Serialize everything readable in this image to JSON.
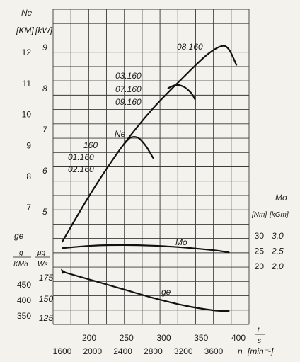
{
  "chart_data": {
    "type": "line",
    "title": "",
    "x_axis": {
      "label": "n",
      "unit": "[min⁻¹]",
      "ticks": [
        "1600",
        "2000",
        "2400",
        "2800",
        "3200",
        "3600"
      ],
      "range": [
        1400,
        4050
      ]
    },
    "x2_axis": {
      "label_top": "r",
      "label_bottom": "s",
      "ticks": [
        "200",
        "250",
        "300",
        "350",
        "400"
      ]
    },
    "power_axis": {
      "label": "Ne",
      "unit_km": "KM",
      "unit_kw": "kW",
      "ticks_km": [
        "7",
        "8",
        "9",
        "10",
        "11",
        "12"
      ],
      "ticks_kw": [
        "5",
        "6",
        "7",
        "8",
        "9"
      ]
    },
    "ge_axis": {
      "label": "ge",
      "unit_left_top": "g",
      "unit_left_bottom": "KMh",
      "unit_right_top": "μg",
      "unit_right_bottom": "Ws",
      "ticks_g_kmh": [
        "350",
        "400",
        "450"
      ],
      "ticks_ug_ws": [
        "125",
        "150",
        "175"
      ]
    },
    "torque_axis": {
      "label": "Mo",
      "unit_nm": "Nm",
      "unit_kgm": "kGm",
      "ticks_nm": [
        "20",
        "25",
        "30"
      ],
      "ticks_kgm": [
        "2,0",
        "2,5",
        "3,0"
      ]
    },
    "series": [
      {
        "name": "08.160",
        "quantity": "Ne",
        "unit": "KM",
        "x": [
          1600,
          2000,
          2400,
          2800,
          3200,
          3500,
          3700,
          3800,
          3900
        ],
        "y": [
          5.9,
          7.55,
          9.0,
          10.2,
          11.2,
          11.9,
          12.2,
          12.1,
          11.6
        ]
      },
      {
        "name": "03.160 07.160 09.160",
        "quantity": "Ne",
        "unit": "KM",
        "x": [
          3000,
          3100,
          3200,
          3300,
          3350
        ],
        "y": [
          10.85,
          10.95,
          10.9,
          10.7,
          10.5
        ]
      },
      {
        "name": "160 01.160 02.160",
        "quantity": "Ne",
        "unit": "KM",
        "x": [
          2400,
          2500,
          2600,
          2700,
          2800
        ],
        "y": [
          9.0,
          9.25,
          9.25,
          9.0,
          8.6
        ]
      },
      {
        "name": "Mo",
        "quantity": "Mo",
        "unit": "Nm",
        "x": [
          1600,
          2000,
          2400,
          2800,
          3200,
          3600,
          3800
        ],
        "y": [
          26.0,
          26.8,
          27.0,
          26.8,
          26.2,
          25.3,
          24.6
        ]
      },
      {
        "name": "ge",
        "quantity": "ge",
        "unit": "g/KMh",
        "x": [
          1600,
          2000,
          2400,
          2800,
          3200,
          3600,
          3800
        ],
        "y": [
          492,
          464,
          436,
          408,
          384,
          368,
          366
        ]
      }
    ]
  }
}
